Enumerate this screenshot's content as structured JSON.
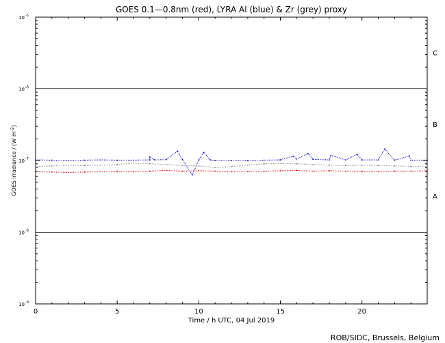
{
  "chart_data": {
    "type": "scatter",
    "title": "GOES 0.1—0.8nm (red), LYRA Al (blue) & Zr (grey) proxy",
    "xlabel": "Time / h UTC, 04 Jul 2019",
    "ylabel": "GOES irradiance / (W m",
    "ylabel_sup": "-2",
    "ylabel_close": ")",
    "credit": "ROB/SIDC, Brussels, Belgium",
    "xlim": [
      0,
      24
    ],
    "ylim": [
      1e-09,
      1e-05
    ],
    "yscale": "log",
    "x_ticks": [
      0,
      5,
      10,
      15,
      20
    ],
    "x_tick_labels": [
      "0",
      "5",
      "10",
      "15",
      "20"
    ],
    "y_ticks": [
      {
        "value": 1e-05,
        "base": "10",
        "exp": "-5"
      },
      {
        "value": 1e-06,
        "base": "10",
        "exp": "-6"
      },
      {
        "value": 1e-07,
        "base": "10",
        "exp": "-7"
      },
      {
        "value": 1e-08,
        "base": "10",
        "exp": "-8"
      },
      {
        "value": 1e-09,
        "base": "10",
        "exp": "-9"
      }
    ],
    "flare_levels": [
      1e-06,
      1e-08
    ],
    "flare_classes": [
      {
        "label": "C",
        "value": 3.2e-06
      },
      {
        "label": "B",
        "value": 3.2e-07
      },
      {
        "label": "A",
        "value": 3.2e-08
      }
    ],
    "series": [
      {
        "color": "#e00000",
        "points": [
          [
            0,
            7e-08
          ],
          [
            1,
            6.9e-08
          ],
          [
            2,
            6.8e-08
          ],
          [
            3,
            6.9e-08
          ],
          [
            4,
            7e-08
          ],
          [
            5,
            7.1e-08
          ],
          [
            6,
            7e-08
          ],
          [
            7,
            7.1e-08
          ],
          [
            8,
            7.3e-08
          ],
          [
            9,
            7.1e-08
          ],
          [
            10,
            7.2e-08
          ],
          [
            11,
            7.1e-08
          ],
          [
            12,
            7e-08
          ],
          [
            13,
            7e-08
          ],
          [
            14,
            7.1e-08
          ],
          [
            15,
            7.2e-08
          ],
          [
            16,
            7.3e-08
          ],
          [
            17,
            7.1e-08
          ],
          [
            18,
            7.2e-08
          ],
          [
            19,
            7.1e-08
          ],
          [
            20,
            7.1e-08
          ],
          [
            21,
            7e-08
          ],
          [
            22,
            7.1e-08
          ],
          [
            23,
            7.1e-08
          ],
          [
            24,
            7.2e-08
          ]
        ]
      },
      {
        "color": "#0000c8",
        "points": [
          [
            0,
            1.02e-07
          ],
          [
            1,
            1.01e-07
          ],
          [
            2,
            1e-07
          ],
          [
            3,
            1.01e-07
          ],
          [
            4,
            1.02e-07
          ],
          [
            5,
            1.01e-07
          ],
          [
            6,
            1.01e-07
          ],
          [
            7,
            1.02e-07
          ],
          [
            7.0,
            1.12e-07
          ],
          [
            7.3,
            1.02e-07
          ],
          [
            8,
            1.03e-07
          ],
          [
            8.7,
            1.35e-07
          ],
          [
            9,
            1.03e-07
          ],
          [
            9.6,
            6.3e-08
          ],
          [
            10,
            1.02e-07
          ],
          [
            10.3,
            1.3e-07
          ],
          [
            10.7,
            1.02e-07
          ],
          [
            11,
            1e-07
          ],
          [
            12,
            1e-07
          ],
          [
            13,
            1e-07
          ],
          [
            14,
            1.01e-07
          ],
          [
            15,
            1.02e-07
          ],
          [
            15.8,
            1.15e-07
          ],
          [
            16,
            1.05e-07
          ],
          [
            16.7,
            1.25e-07
          ],
          [
            17,
            1.04e-07
          ],
          [
            18,
            1.02e-07
          ],
          [
            18.1,
            1.18e-07
          ],
          [
            19,
            1.02e-07
          ],
          [
            19.7,
            1.22e-07
          ],
          [
            20,
            1.02e-07
          ],
          [
            21,
            1.02e-07
          ],
          [
            21.4,
            1.45e-07
          ],
          [
            22,
            1.01e-07
          ],
          [
            22.9,
            1.16e-07
          ],
          [
            23,
            1.01e-07
          ],
          [
            24,
            1.01e-07
          ]
        ]
      },
      {
        "color": "#8c8c8c",
        "points": [
          [
            0,
            8.2e-08
          ],
          [
            1,
            8.4e-08
          ],
          [
            2,
            8.6e-08
          ],
          [
            3,
            8.5e-08
          ],
          [
            4,
            8.6e-08
          ],
          [
            5,
            8.8e-08
          ],
          [
            6,
            9.2e-08
          ],
          [
            7,
            9e-08
          ],
          [
            8,
            8.8e-08
          ],
          [
            9,
            8.5e-08
          ],
          [
            10,
            8.4e-08
          ],
          [
            11,
            8e-08
          ],
          [
            12,
            8.2e-08
          ],
          [
            13,
            8.6e-08
          ],
          [
            14,
            9e-08
          ],
          [
            15,
            9.1e-08
          ],
          [
            16,
            9e-08
          ],
          [
            17,
            8.8e-08
          ],
          [
            18,
            8.6e-08
          ],
          [
            19,
            8.5e-08
          ],
          [
            20,
            8.6e-08
          ],
          [
            21,
            8.5e-08
          ],
          [
            22,
            8.4e-08
          ],
          [
            23,
            8.3e-08
          ],
          [
            24,
            8.2e-08
          ]
        ]
      }
    ]
  }
}
